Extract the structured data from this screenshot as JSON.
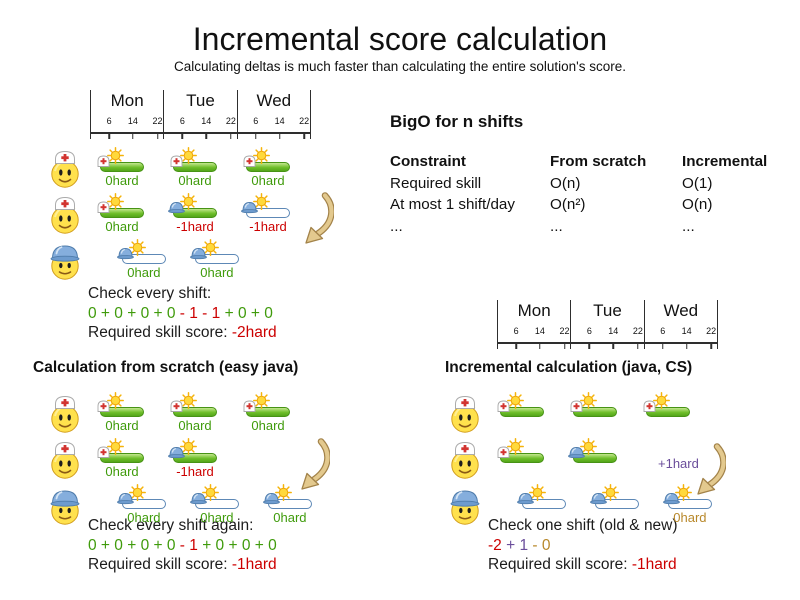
{
  "title": "Incremental score calculation",
  "subtitle": "Calculating deltas is much faster than calculating the entire solution's score.",
  "colors": {
    "green": "#3f9b0b",
    "red": "#cc0000",
    "purple": "#6b4e9b",
    "gold": "#b8882a",
    "black": "#1c1c1c"
  },
  "timeline": {
    "days": [
      "Mon",
      "Tue",
      "Wed"
    ],
    "hours": [
      "6",
      "14",
      "22"
    ]
  },
  "bigo": {
    "title": "BigO for n shifts",
    "columns": [
      "Constraint",
      "From scratch",
      "Incremental"
    ],
    "rows": [
      [
        "Required skill",
        "O(n)",
        "O(1)"
      ],
      [
        "At most 1 shift/day",
        "O(n²)",
        "O(n)"
      ],
      [
        "...",
        "...",
        "..."
      ]
    ]
  },
  "sections": {
    "initial": {
      "check": {
        "heading": "Check every shift:",
        "formula": [
          {
            "text": "0 + 0 + 0 + 0",
            "color": "green"
          },
          {
            "text": " - 1 - 1",
            "color": "red"
          },
          {
            "text": " + 0 + 0",
            "color": "green"
          }
        ],
        "score_label": "Required skill score: ",
        "score_value": "-2hard",
        "score_color": "red"
      },
      "grid": {
        "employees": [
          "nurse",
          "nurse",
          "builder"
        ],
        "rows": [
          {
            "employee": "nurse",
            "shifts": [
              {
                "col": 0,
                "bar": "green",
                "hat": "nurse",
                "label": "0hard",
                "label_color": "green"
              },
              {
                "col": 1,
                "bar": "green",
                "hat": "nurse",
                "label": "0hard",
                "label_color": "green"
              },
              {
                "col": 2,
                "bar": "green",
                "hat": "nurse",
                "label": "0hard",
                "label_color": "green"
              }
            ]
          },
          {
            "employee": "nurse",
            "shifts": [
              {
                "col": 0,
                "bar": "green",
                "hat": "nurse",
                "label": "0hard",
                "label_color": "green"
              },
              {
                "col": 1,
                "bar": "green",
                "hat": "builder",
                "label": "-1hard",
                "label_color": "red"
              },
              {
                "col": 2,
                "bar": "blue",
                "hat": "builder",
                "label": "-1hard",
                "label_color": "red"
              }
            ]
          },
          {
            "employee": "builder",
            "shifts": [
              {
                "col": 0.3,
                "bar": "blue",
                "hat": "builder",
                "label": "0hard",
                "label_color": "green"
              },
              {
                "col": 1.3,
                "bar": "blue",
                "hat": "builder",
                "label": "0hard",
                "label_color": "green"
              }
            ]
          }
        ],
        "arrow": true
      }
    },
    "scratch": {
      "heading": "Calculation from scratch (easy java)",
      "check": {
        "heading": "Check every shift again:",
        "formula": [
          {
            "text": "0 + 0 + 0 + 0",
            "color": "green"
          },
          {
            "text": " - 1",
            "color": "red"
          },
          {
            "text": " + 0 + 0 + 0",
            "color": "green"
          }
        ],
        "score_label": "Required skill score: ",
        "score_value": "-1hard",
        "score_color": "red"
      },
      "grid": {
        "employees": [
          "nurse",
          "nurse",
          "builder"
        ],
        "rows": [
          {
            "employee": "nurse",
            "shifts": [
              {
                "col": 0,
                "bar": "green",
                "hat": "nurse",
                "label": "0hard",
                "label_color": "green"
              },
              {
                "col": 1,
                "bar": "green",
                "hat": "nurse",
                "label": "0hard",
                "label_color": "green"
              },
              {
                "col": 2,
                "bar": "green",
                "hat": "nurse",
                "label": "0hard",
                "label_color": "green"
              }
            ]
          },
          {
            "employee": "nurse",
            "shifts": [
              {
                "col": 0,
                "bar": "green",
                "hat": "nurse",
                "label": "0hard",
                "label_color": "green"
              },
              {
                "col": 1,
                "bar": "green",
                "hat": "builder",
                "label": "-1hard",
                "label_color": "red"
              }
            ]
          },
          {
            "employee": "builder",
            "shifts": [
              {
                "col": 0.3,
                "bar": "blue",
                "hat": "builder",
                "label": "0hard",
                "label_color": "green"
              },
              {
                "col": 1.3,
                "bar": "blue",
                "hat": "builder",
                "label": "0hard",
                "label_color": "green"
              },
              {
                "col": 2.3,
                "bar": "blue",
                "hat": "builder",
                "label": "0hard",
                "label_color": "green"
              }
            ]
          }
        ],
        "arrow": true
      }
    },
    "incremental": {
      "heading": "Incremental calculation (java, CS)",
      "annotation": {
        "text": "+1hard",
        "color": "purple"
      },
      "check": {
        "heading": "Check one shift (old & new)",
        "formula": [
          {
            "text": "-2",
            "color": "red"
          },
          {
            "text": " + 1",
            "color": "purple"
          },
          {
            "text": " - 0",
            "color": "gold"
          }
        ],
        "score_label": "Required skill score: ",
        "score_value": "-1hard",
        "score_color": "red"
      },
      "grid": {
        "employees": [
          "nurse",
          "nurse",
          "builder"
        ],
        "rows": [
          {
            "employee": "nurse",
            "shifts": [
              {
                "col": 0,
                "bar": "green",
                "hat": "nurse",
                "label": null
              },
              {
                "col": 1,
                "bar": "green",
                "hat": "nurse",
                "label": null
              },
              {
                "col": 2,
                "bar": "green",
                "hat": "nurse",
                "label": null
              }
            ]
          },
          {
            "employee": "nurse",
            "shifts": [
              {
                "col": 0,
                "bar": "green",
                "hat": "nurse",
                "label": null
              },
              {
                "col": 1,
                "bar": "green",
                "hat": "builder",
                "label": null
              }
            ]
          },
          {
            "employee": "builder",
            "shifts": [
              {
                "col": 0.3,
                "bar": "blue",
                "hat": "builder",
                "label": null
              },
              {
                "col": 1.3,
                "bar": "blue",
                "hat": "builder",
                "label": null
              },
              {
                "col": 2.3,
                "bar": "blue",
                "hat": "builder",
                "label": "0hard",
                "label_color": "gold"
              }
            ]
          }
        ],
        "arrow": true
      }
    }
  }
}
